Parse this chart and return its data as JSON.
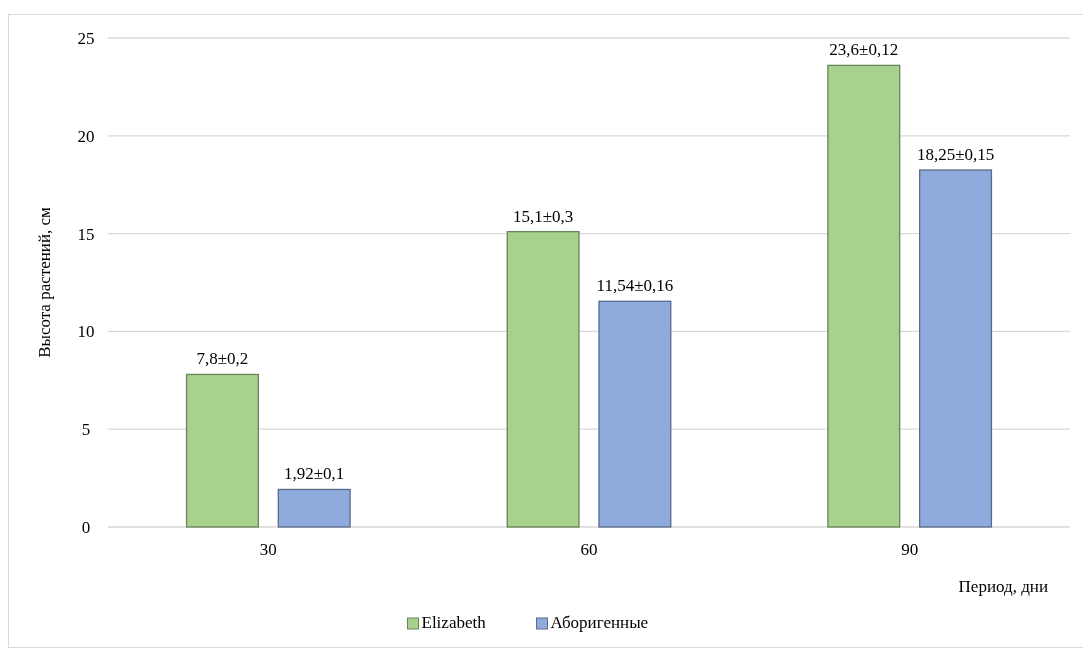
{
  "chart_data": {
    "type": "bar",
    "xlabel": "Период, дни",
    "ylabel": "Высота растений, см",
    "categories": [
      "30",
      "60",
      "90"
    ],
    "series": [
      {
        "name": "Elizabeth",
        "color": "#a9d18e",
        "values": [
          7.8,
          15.1,
          23.6
        ],
        "value_labels": [
          "7,8±0,2",
          "15,1±0,3",
          "23,6±0,12"
        ]
      },
      {
        "name": "Аборигенные",
        "color": "#8faadc",
        "values": [
          1.92,
          11.54,
          18.25
        ],
        "value_labels": [
          "1,92±0,1",
          "11,54±0,16",
          "18,25±0,15"
        ]
      }
    ],
    "ylim": [
      0,
      25
    ],
    "yticks": [
      0,
      5,
      10,
      15,
      20,
      25
    ],
    "grid": "y",
    "legend": "bottom"
  }
}
